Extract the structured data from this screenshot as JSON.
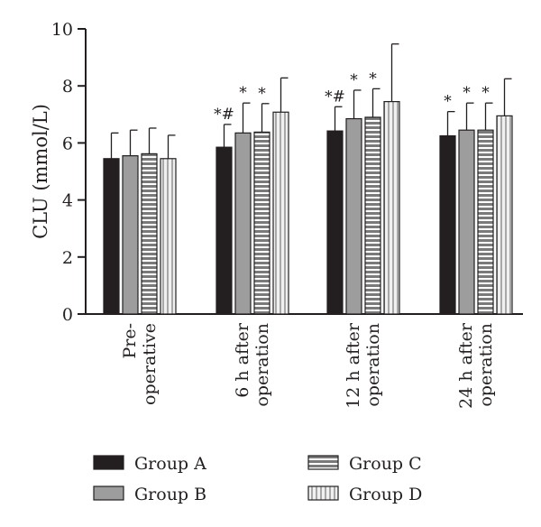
{
  "chart_data": {
    "type": "bar",
    "title": "",
    "xlabel": "",
    "ylabel": "CLU (mmol/L)",
    "ylim": [
      0,
      10
    ],
    "yticks": [
      "0",
      "2",
      "4",
      "6",
      "8",
      "10"
    ],
    "categories": [
      [
        "Pre-",
        "operative"
      ],
      [
        "6 h after",
        "operation"
      ],
      [
        "12 h after",
        "operation"
      ],
      [
        "24 h after",
        "operation"
      ]
    ],
    "series": [
      {
        "name": "Group A",
        "values": [
          5.45,
          5.85,
          6.42,
          6.25
        ],
        "errors": [
          0.9,
          0.8,
          0.85,
          0.85
        ],
        "color": "#231f20",
        "pattern": "solid"
      },
      {
        "name": "Group B",
        "values": [
          5.55,
          6.35,
          6.85,
          6.45
        ],
        "errors": [
          0.9,
          1.05,
          1.0,
          0.95
        ],
        "color": "#9d9d9d",
        "pattern": "solid"
      },
      {
        "name": "Group C",
        "values": [
          5.62,
          6.38,
          6.9,
          6.45
        ],
        "errors": [
          0.9,
          1.0,
          1.0,
          0.95
        ],
        "color": "#7a7a7a",
        "pattern": "horizontal-stripes"
      },
      {
        "name": "Group D",
        "values": [
          5.45,
          7.08,
          7.45,
          6.95
        ],
        "errors": [
          0.82,
          1.2,
          2.02,
          1.3
        ],
        "color": "#dcdcdc",
        "pattern": "vertical-stripes"
      }
    ],
    "significance": [
      {
        "category": 1,
        "series": 0,
        "label": "*#"
      },
      {
        "category": 1,
        "series": 1,
        "label": "*"
      },
      {
        "category": 1,
        "series": 2,
        "label": "*"
      },
      {
        "category": 2,
        "series": 0,
        "label": "*#"
      },
      {
        "category": 2,
        "series": 1,
        "label": "*"
      },
      {
        "category": 2,
        "series": 2,
        "label": "*"
      },
      {
        "category": 3,
        "series": 0,
        "label": "*"
      },
      {
        "category": 3,
        "series": 1,
        "label": "*"
      },
      {
        "category": 3,
        "series": 2,
        "label": "*"
      }
    ],
    "legend": {
      "position": "bottom",
      "items": [
        "Group A",
        "Group B",
        "Group C",
        "Group D"
      ]
    },
    "grid": false
  }
}
